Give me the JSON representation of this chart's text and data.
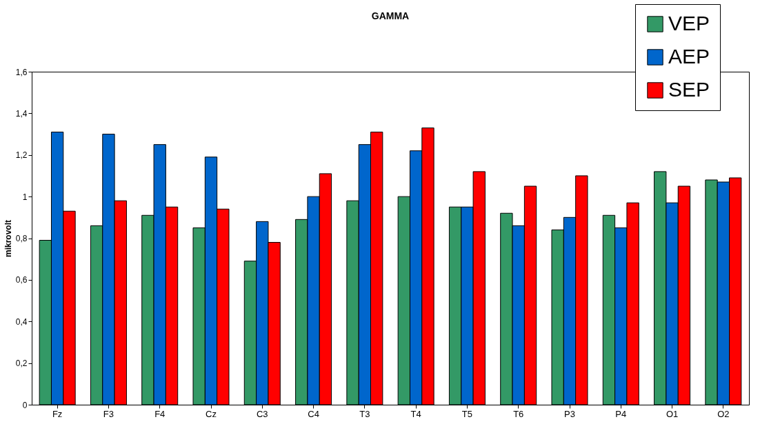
{
  "chart_data": {
    "type": "bar",
    "title": "GAMMA",
    "ylabel": "mikrovolt",
    "categories": [
      "Fz",
      "F3",
      "F4",
      "Cz",
      "C3",
      "C4",
      "T3",
      "T4",
      "T5",
      "T6",
      "P3",
      "P4",
      "O1",
      "O2"
    ],
    "series": [
      {
        "name": "VEP",
        "color": "#339966",
        "values": [
          0.79,
          0.86,
          0.91,
          0.85,
          0.69,
          0.89,
          0.98,
          1.0,
          0.95,
          0.92,
          0.84,
          0.91,
          1.12,
          1.08
        ]
      },
      {
        "name": "AEP",
        "color": "#0066cc",
        "values": [
          1.31,
          1.3,
          1.25,
          1.19,
          0.88,
          1.0,
          1.25,
          1.22,
          0.95,
          0.86,
          0.9,
          0.85,
          0.97,
          1.07
        ]
      },
      {
        "name": "SEP",
        "color": "#ff0000",
        "values": [
          0.93,
          0.98,
          0.95,
          0.94,
          0.78,
          1.11,
          1.31,
          1.33,
          1.12,
          1.05,
          1.1,
          0.97,
          1.05,
          1.09
        ]
      }
    ],
    "ylim": [
      0,
      1.6
    ],
    "yticks": [
      0,
      {
        "value": 0.2,
        "label": "0,2"
      },
      {
        "value": 0.4,
        "label": "0,4"
      },
      {
        "value": 0.6,
        "label": "0,6"
      },
      {
        "value": 0.8,
        "label": "0,8"
      },
      1,
      {
        "value": 1.2,
        "label": "1,2"
      },
      {
        "value": 1.4,
        "label": "1,4"
      },
      {
        "value": 1.6,
        "label": "1,6"
      }
    ],
    "grid": false,
    "legend": "top right"
  }
}
